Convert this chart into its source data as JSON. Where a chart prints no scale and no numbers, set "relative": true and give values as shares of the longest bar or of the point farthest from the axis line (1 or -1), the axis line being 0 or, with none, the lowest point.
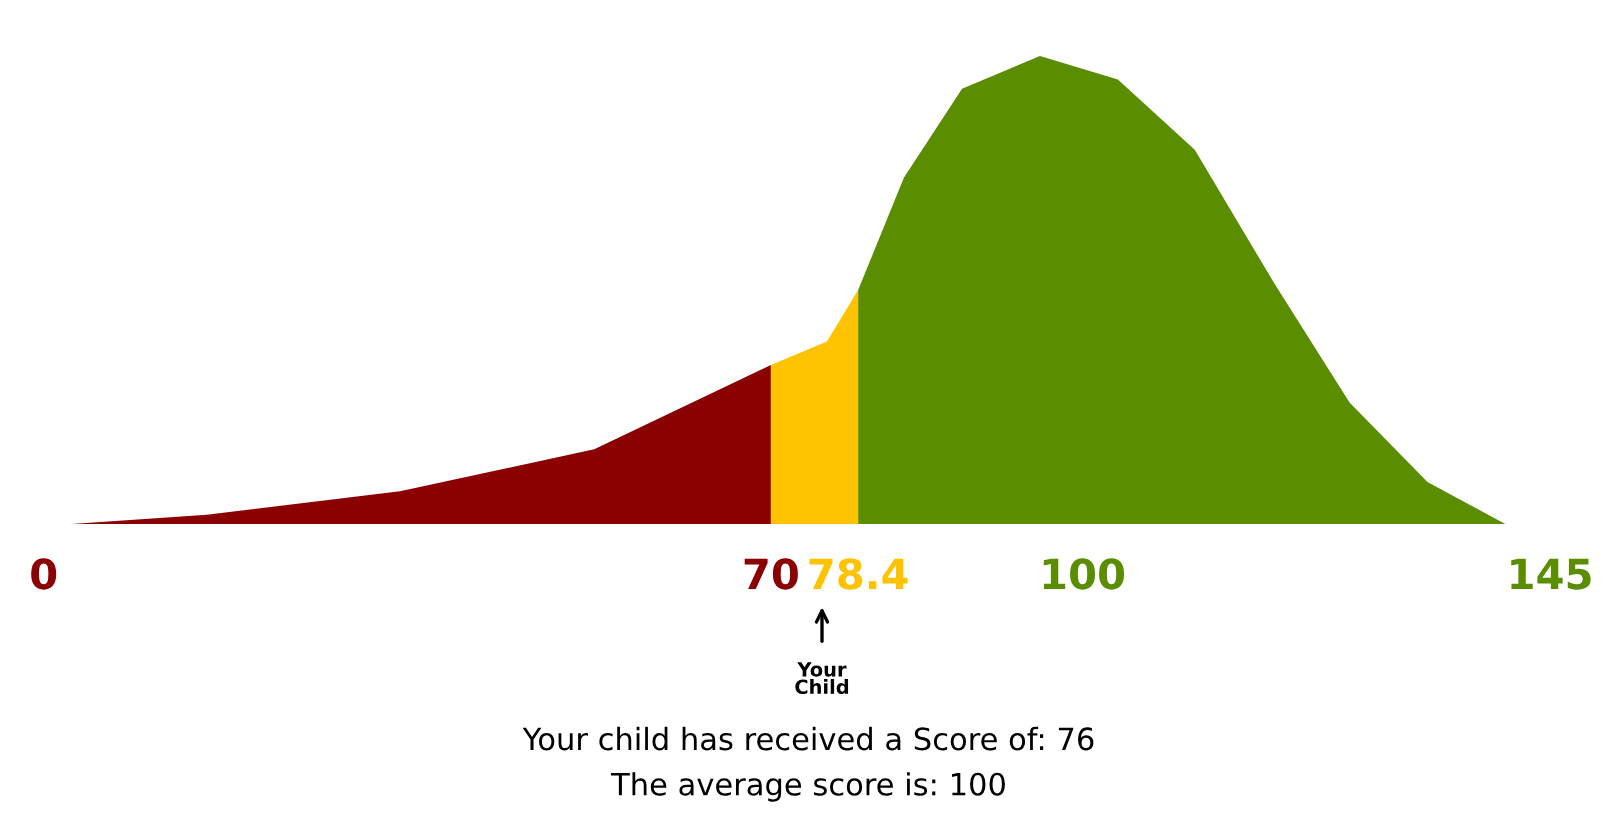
{
  "chart_data": {
    "type": "area",
    "relative": true,
    "xlim": [
      0,
      145
    ],
    "xticks": [
      0,
      70,
      78.4,
      100,
      145
    ],
    "grid": false,
    "series": [
      {
        "color": "#8b0000",
        "x": [
          2.6,
          15.7,
          34.3,
          53,
          70
        ],
        "values": [
          0,
          0.02,
          0.07,
          0.16,
          0.34
        ]
      },
      {
        "color": "#ffc200",
        "x": [
          70,
          75.4,
          78.4
        ],
        "values": [
          0.34,
          0.39,
          0.5
        ]
      },
      {
        "color": "#5a8e00",
        "x": [
          78.4,
          82.8,
          88.4,
          95.9,
          103.4,
          110.8,
          118.3,
          125.7,
          133.2,
          140.7
        ],
        "values": [
          0.5,
          0.74,
          0.93,
          1.0,
          0.95,
          0.8,
          0.52,
          0.26,
          0.09,
          0
        ]
      }
    ],
    "annotations": [
      "Your\nChild",
      "Your child has received a Score of: 76",
      "The average score is: 100"
    ]
  }
}
